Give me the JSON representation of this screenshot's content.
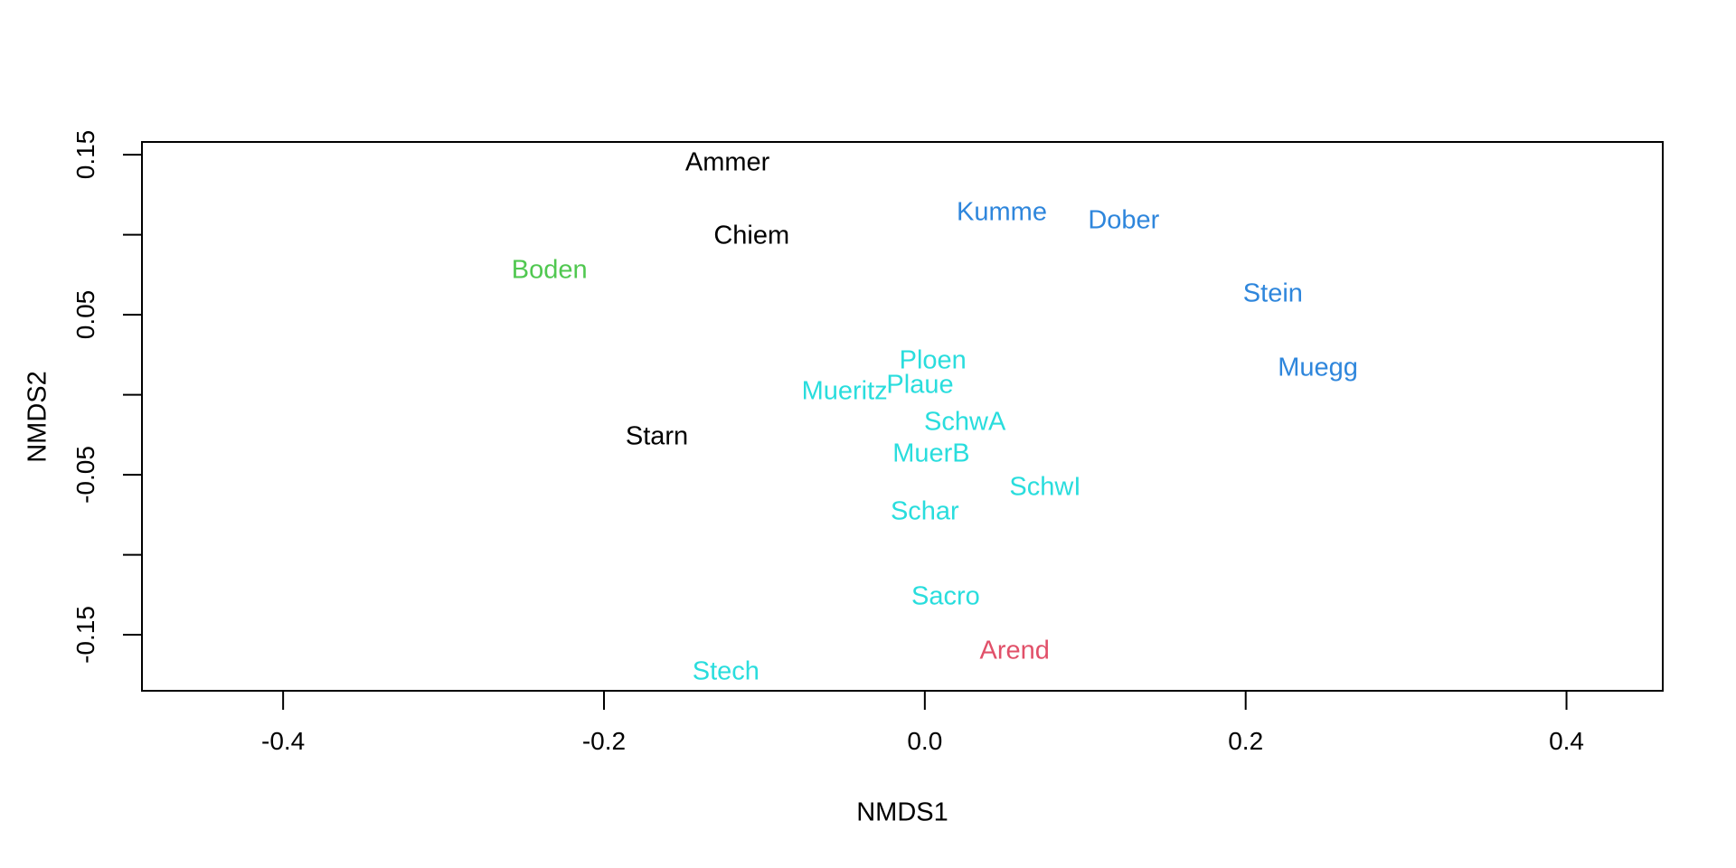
{
  "figure": {
    "background_color": "#ffffff",
    "axis_color": "#000000"
  },
  "chart_data": {
    "type": "scatter",
    "subtype": "text-labeled-ordination",
    "title": "",
    "xlabel": "NMDS1",
    "ylabel": "NMDS2",
    "xlim": [
      -0.488,
      0.46
    ],
    "ylim": [
      -0.185,
      0.158
    ],
    "grid": false,
    "legend": "none",
    "x_ticks": [
      {
        "value": -0.4,
        "label": "-0.4"
      },
      {
        "value": -0.2,
        "label": "-0.2"
      },
      {
        "value": 0.0,
        "label": "0.0"
      },
      {
        "value": 0.2,
        "label": "0.2"
      },
      {
        "value": 0.4,
        "label": "0.4"
      }
    ],
    "y_ticks": [
      {
        "value": 0.15,
        "label": "0.15"
      },
      {
        "value": 0.1,
        "label": ""
      },
      {
        "value": 0.05,
        "label": "0.05"
      },
      {
        "value": 0.0,
        "label": ""
      },
      {
        "value": -0.05,
        "label": "-0.05"
      },
      {
        "value": -0.1,
        "label": ""
      },
      {
        "value": -0.15,
        "label": "-0.15"
      }
    ],
    "group_colors": {
      "black": "#000000",
      "green": "#50C850",
      "blue": "#2E86DC",
      "cyan": "#29DDDD",
      "red": "#E15069"
    },
    "points": [
      {
        "label": "Ammer",
        "x": -0.123,
        "y": 0.145,
        "group": "black"
      },
      {
        "label": "Chiem",
        "x": -0.108,
        "y": 0.099,
        "group": "black"
      },
      {
        "label": "Boden",
        "x": -0.234,
        "y": 0.078,
        "group": "green"
      },
      {
        "label": "Kumme",
        "x": 0.048,
        "y": 0.114,
        "group": "blue"
      },
      {
        "label": "Dober",
        "x": 0.124,
        "y": 0.109,
        "group": "blue"
      },
      {
        "label": "Stein",
        "x": 0.217,
        "y": 0.063,
        "group": "blue"
      },
      {
        "label": "Muegg",
        "x": 0.245,
        "y": 0.017,
        "group": "blue"
      },
      {
        "label": "Ploen",
        "x": 0.005,
        "y": 0.021,
        "group": "cyan"
      },
      {
        "label": "Plaue",
        "x": -0.003,
        "y": 0.006,
        "group": "cyan"
      },
      {
        "label": "Mueritz",
        "x": -0.05,
        "y": 0.002,
        "group": "cyan"
      },
      {
        "label": "SchwA",
        "x": 0.025,
        "y": -0.017,
        "group": "cyan"
      },
      {
        "label": "MuerB",
        "x": 0.004,
        "y": -0.037,
        "group": "cyan"
      },
      {
        "label": "SchwI",
        "x": 0.075,
        "y": -0.058,
        "group": "cyan"
      },
      {
        "label": "Schar",
        "x": 0.0,
        "y": -0.073,
        "group": "cyan"
      },
      {
        "label": "Starn",
        "x": -0.167,
        "y": -0.026,
        "group": "black"
      },
      {
        "label": "Sacro",
        "x": 0.013,
        "y": -0.126,
        "group": "cyan"
      },
      {
        "label": "Arend",
        "x": 0.056,
        "y": -0.16,
        "group": "red"
      },
      {
        "label": "Stech",
        "x": -0.124,
        "y": -0.173,
        "group": "cyan"
      }
    ]
  }
}
